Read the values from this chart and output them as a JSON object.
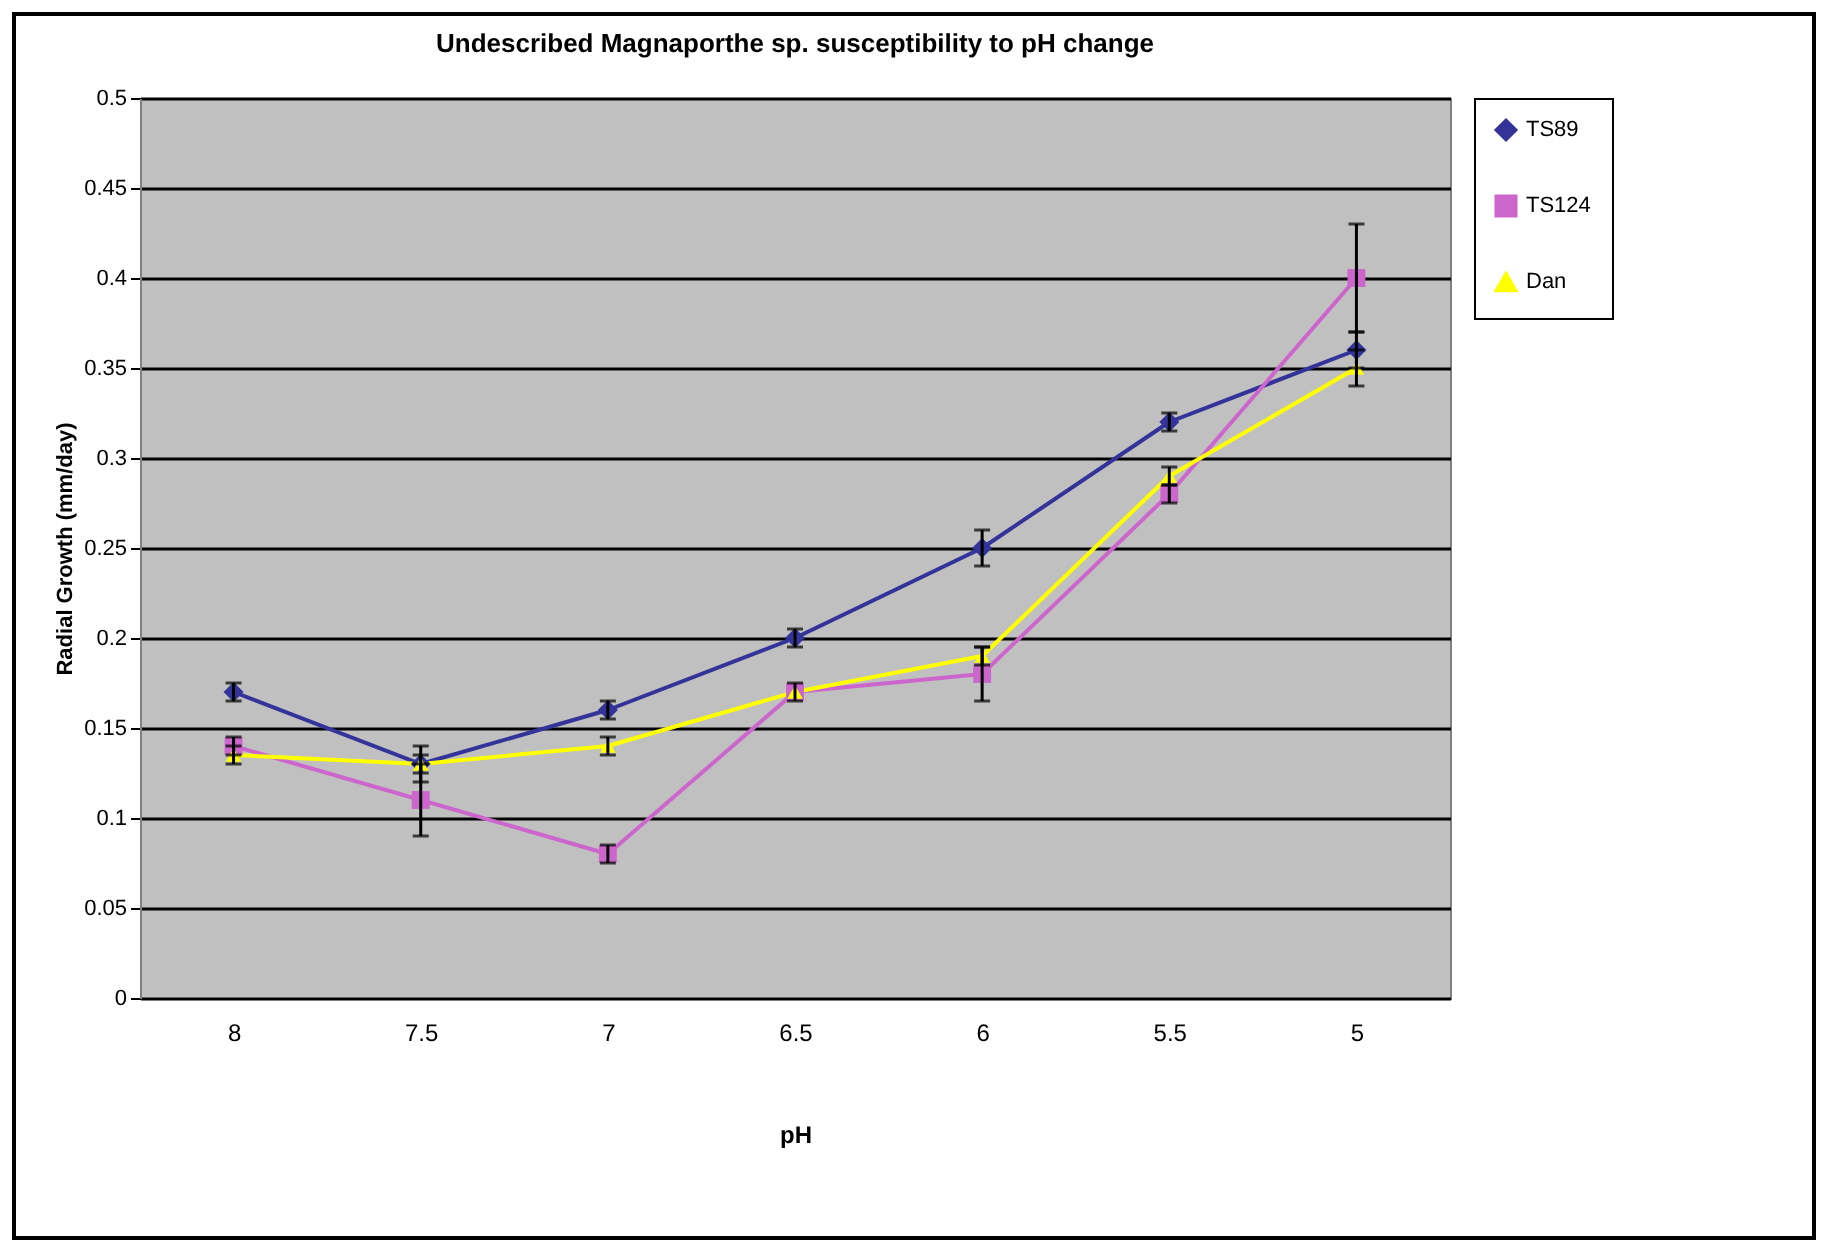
{
  "chart_data": {
    "type": "line",
    "title": "Undescribed Magnaporthe sp. susceptibility to pH change",
    "xlabel": "pH",
    "ylabel": "Radial Growth (mm/day)",
    "categories": [
      "8",
      "7.5",
      "7",
      "6.5",
      "6",
      "5.5",
      "5"
    ],
    "series": [
      {
        "name": "TS89",
        "color": "#333399",
        "marker": "diamond",
        "values": [
          0.17,
          0.13,
          0.16,
          0.2,
          0.25,
          0.32,
          0.36
        ],
        "errors": [
          0.005,
          0.01,
          0.005,
          0.005,
          0.01,
          0.005,
          0.01
        ]
      },
      {
        "name": "TS124",
        "color": "#cc66cc",
        "marker": "square",
        "values": [
          0.14,
          0.11,
          0.08,
          0.17,
          0.18,
          0.28,
          0.4
        ],
        "errors": [
          0.005,
          0.02,
          0.005,
          0.005,
          0.015,
          0.005,
          0.03
        ]
      },
      {
        "name": "Dan",
        "color": "#ffff00",
        "marker": "triangle",
        "values": [
          0.135,
          0.13,
          0.14,
          0.17,
          0.19,
          0.29,
          0.35
        ],
        "errors": [
          0.005,
          0.005,
          0.005,
          null,
          0.005,
          0.005,
          0.01
        ]
      }
    ],
    "ylim": [
      0,
      0.5
    ],
    "yticks": [
      0,
      0.05,
      0.1,
      0.15,
      0.2,
      0.25,
      0.3,
      0.35,
      0.4,
      0.45,
      0.5
    ],
    "grid": "y",
    "legend": "right"
  }
}
